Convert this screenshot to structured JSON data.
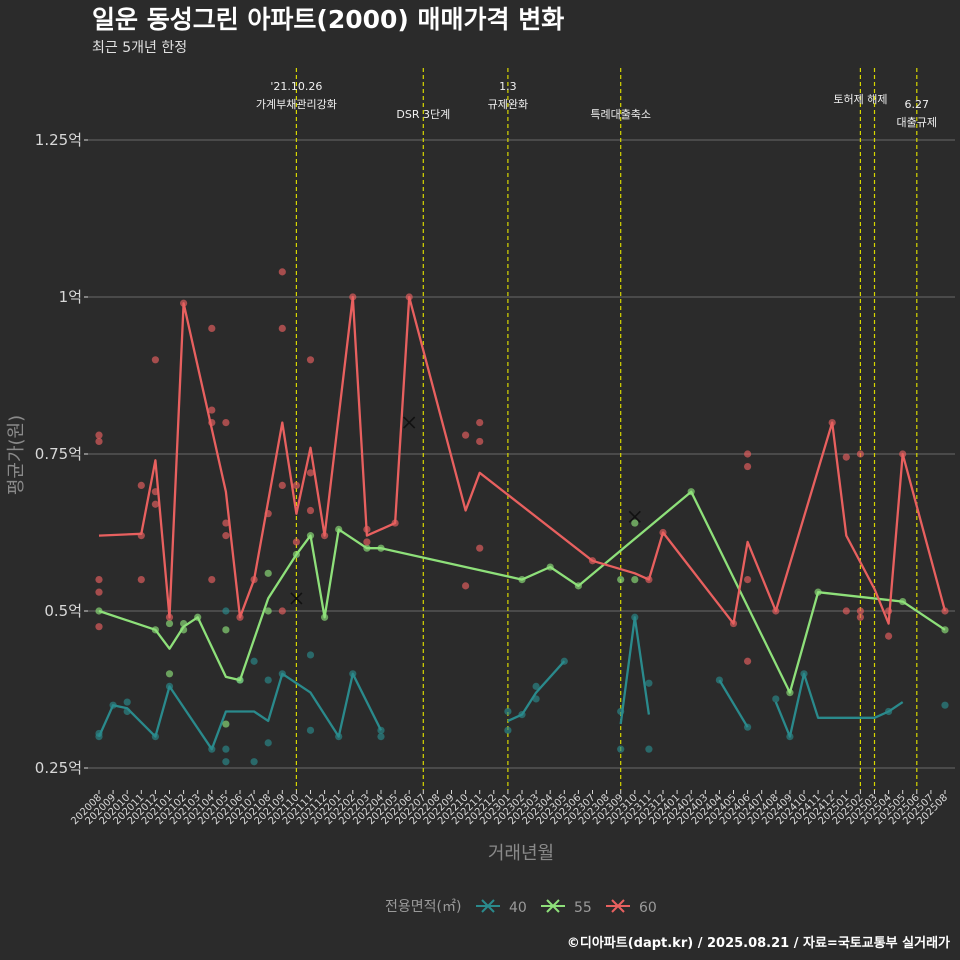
{
  "chart_data": {
    "type": "line",
    "title": "일운 동성그린 아파트(2000) 매매가격 변화",
    "subtitle": "최근 5개년 한정",
    "xlabel": "거래년월",
    "ylabel": "평균가(원)",
    "caption": "©디아파트(dapt.kr) / 2025.08.21 / 자료=국토교통부 실거래가",
    "ylim": [
      0.2,
      1.35
    ],
    "yticks": [
      {
        "value": 0.25,
        "label": "0.25억"
      },
      {
        "value": 0.5,
        "label": "0.5억"
      },
      {
        "value": 0.75,
        "label": "0.75억"
      },
      {
        "value": 1.0,
        "label": "1억"
      },
      {
        "value": 1.25,
        "label": "1.25억"
      }
    ],
    "x_categories": [
      "202008",
      "202009",
      "202010",
      "202011",
      "202012",
      "202101",
      "202102",
      "202103",
      "202104",
      "202105",
      "202106",
      "202107",
      "202108",
      "202109",
      "202110",
      "202111",
      "202112",
      "202201",
      "202202",
      "202203",
      "202204",
      "202205",
      "202206",
      "202207",
      "202208",
      "202209",
      "202210",
      "202211",
      "202212",
      "202301",
      "202302",
      "202303",
      "202304",
      "202305",
      "202306",
      "202307",
      "202308",
      "202309",
      "202310",
      "202311",
      "202312",
      "202401",
      "202402",
      "202403",
      "202404",
      "202405",
      "202406",
      "202407",
      "202408",
      "202409",
      "202410",
      "202411",
      "202412",
      "202501",
      "202502",
      "202503",
      "202504",
      "202505",
      "202506",
      "202507",
      "202508"
    ],
    "events": [
      {
        "month": "202110",
        "lines": [
          "'21.10.26",
          "가계부채관리강화"
        ]
      },
      {
        "month": "202207",
        "lines": [
          "DSR 3단계"
        ]
      },
      {
        "month": "202301",
        "lines": [
          "1.3",
          "규제완화"
        ]
      },
      {
        "month": "202309",
        "lines": [
          "특례대출축소"
        ]
      },
      {
        "month": "202502",
        "lines": [
          "토허제 해제"
        ]
      },
      {
        "month": "202503",
        "lines": [
          ""
        ]
      },
      {
        "month": "202506",
        "lines": [
          "6.27",
          "대출규제"
        ]
      }
    ],
    "legend": {
      "title": "전용면적(㎡)",
      "position": "bottom"
    },
    "series": [
      {
        "name": "40",
        "color": "#2a8a8c",
        "line": [
          {
            "segment": [
              [
                "202008",
                0.3
              ],
              [
                "202009",
                0.35
              ],
              [
                "202010",
                0.345
              ],
              [
                "202012",
                0.3
              ],
              [
                "202101",
                0.38
              ],
              [
                "202104",
                0.28
              ],
              [
                "202105",
                0.34
              ],
              [
                "202107",
                0.34
              ],
              [
                "202108",
                0.325
              ],
              [
                "202109",
                0.4
              ],
              [
                "202111",
                0.37
              ],
              [
                "202201",
                0.3
              ],
              [
                "202202",
                0.4
              ],
              [
                "202204",
                0.31
              ]
            ]
          },
          {
            "segment": [
              [
                "202301",
                0.325
              ],
              [
                "202302",
                0.335
              ],
              [
                "202303",
                0.37
              ],
              [
                "202305",
                0.42
              ]
            ]
          },
          {
            "segment": [
              [
                "202309",
                0.32
              ],
              [
                "202310",
                0.49
              ],
              [
                "202311",
                0.335
              ]
            ]
          },
          {
            "segment": [
              [
                "202404",
                0.39
              ],
              [
                "202406",
                0.315
              ]
            ]
          },
          {
            "segment": [
              [
                "202408",
                0.355
              ],
              [
                "202409",
                0.3
              ],
              [
                "202410",
                0.4
              ],
              [
                "202411",
                0.33
              ],
              [
                "202503",
                0.33
              ],
              [
                "202504",
                0.34
              ],
              [
                "202505",
                0.355
              ]
            ]
          }
        ],
        "points": [
          [
            "202008",
            0.305
          ],
          [
            "202008",
            0.3
          ],
          [
            "202009",
            0.35
          ],
          [
            "202010",
            0.34
          ],
          [
            "202010",
            0.355
          ],
          [
            "202012",
            0.3
          ],
          [
            "202101",
            0.38
          ],
          [
            "202104",
            0.28
          ],
          [
            "202105",
            0.5
          ],
          [
            "202105",
            0.28
          ],
          [
            "202105",
            0.26
          ],
          [
            "202106",
            0.39
          ],
          [
            "202107",
            0.42
          ],
          [
            "202107",
            0.26
          ],
          [
            "202108",
            0.39
          ],
          [
            "202108",
            0.29
          ],
          [
            "202109",
            0.4
          ],
          [
            "202111",
            0.43
          ],
          [
            "202111",
            0.31
          ],
          [
            "202201",
            0.3
          ],
          [
            "202202",
            0.4
          ],
          [
            "202204",
            0.3
          ],
          [
            "202204",
            0.31
          ],
          [
            "202301",
            0.31
          ],
          [
            "202301",
            0.34
          ],
          [
            "202302",
            0.335
          ],
          [
            "202303",
            0.38
          ],
          [
            "202303",
            0.36
          ],
          [
            "202305",
            0.42
          ],
          [
            "202309",
            0.28
          ],
          [
            "202309",
            0.34
          ],
          [
            "202310",
            0.49
          ],
          [
            "202311",
            0.28
          ],
          [
            "202311",
            0.385
          ],
          [
            "202404",
            0.39
          ],
          [
            "202406",
            0.315
          ],
          [
            "202408",
            0.36
          ],
          [
            "202409",
            0.3
          ],
          [
            "202410",
            0.4
          ],
          [
            "202504",
            0.34
          ],
          [
            "202508",
            0.35
          ]
        ],
        "marker": null
      },
      {
        "name": "55",
        "color": "#8ee07a",
        "line": [
          {
            "segment": [
              [
                "202008",
                0.5
              ],
              [
                "202012",
                0.47
              ],
              [
                "202101",
                0.44
              ],
              [
                "202102",
                0.475
              ],
              [
                "202103",
                0.49
              ],
              [
                "202105",
                0.395
              ],
              [
                "202106",
                0.39
              ],
              [
                "202108",
                0.52
              ],
              [
                "202110",
                0.59
              ],
              [
                "202111",
                0.62
              ],
              [
                "202112",
                0.49
              ],
              [
                "202201",
                0.63
              ],
              [
                "202203",
                0.6
              ],
              [
                "202204",
                0.6
              ],
              [
                "202302",
                0.55
              ],
              [
                "202304",
                0.57
              ],
              [
                "202306",
                0.54
              ],
              [
                "202402",
                0.69
              ],
              [
                "202409",
                0.37
              ],
              [
                "202411",
                0.53
              ],
              [
                "202505",
                0.515
              ],
              [
                "202508",
                0.47
              ]
            ]
          }
        ],
        "points": [
          [
            "202008",
            0.5
          ],
          [
            "202012",
            0.47
          ],
          [
            "202101",
            0.48
          ],
          [
            "202101",
            0.4
          ],
          [
            "202102",
            0.48
          ],
          [
            "202102",
            0.47
          ],
          [
            "202103",
            0.49
          ],
          [
            "202105",
            0.47
          ],
          [
            "202105",
            0.32
          ],
          [
            "202106",
            0.39
          ],
          [
            "202108",
            0.5
          ],
          [
            "202108",
            0.56
          ],
          [
            "202110",
            0.59
          ],
          [
            "202111",
            0.62
          ],
          [
            "202112",
            0.49
          ],
          [
            "202201",
            0.63
          ],
          [
            "202203",
            0.6
          ],
          [
            "202204",
            0.6
          ],
          [
            "202302",
            0.55
          ],
          [
            "202304",
            0.57
          ],
          [
            "202306",
            0.54
          ],
          [
            "202309",
            0.55
          ],
          [
            "202310",
            0.55
          ],
          [
            "202310",
            0.64
          ],
          [
            "202402",
            0.69
          ],
          [
            "202409",
            0.37
          ],
          [
            "202411",
            0.53
          ],
          [
            "202505",
            0.515
          ],
          [
            "202508",
            0.47
          ]
        ],
        "marker": [
          "202310",
          0.65
        ],
        "marker2": [
          "202110",
          0.52
        ]
      },
      {
        "name": "60",
        "color": "#e8605f",
        "line": [
          {
            "segment": [
              [
                "202008",
                0.62
              ],
              [
                "202011",
                0.623
              ],
              [
                "202012",
                0.74
              ],
              [
                "202101",
                0.49
              ],
              [
                "202102",
                0.99
              ],
              [
                "202105",
                0.69
              ],
              [
                "202106",
                0.49
              ],
              [
                "202107",
                0.55
              ],
              [
                "202109",
                0.8
              ],
              [
                "202110",
                0.655
              ],
              [
                "202111",
                0.76
              ],
              [
                "202112",
                0.62
              ],
              [
                "202202",
                1.0
              ],
              [
                "202203",
                0.62
              ],
              [
                "202205",
                0.64
              ],
              [
                "202206",
                1.0
              ],
              [
                "202210",
                0.66
              ],
              [
                "202211",
                0.72
              ],
              [
                "202307",
                0.58
              ],
              [
                "202310",
                0.56
              ],
              [
                "202311",
                0.55
              ],
              [
                "202312",
                0.625
              ],
              [
                "202405",
                0.48
              ],
              [
                "202406",
                0.61
              ],
              [
                "202408",
                0.5
              ],
              [
                "202412",
                0.8
              ],
              [
                "202501",
                0.62
              ],
              [
                "202503",
                0.535
              ],
              [
                "202504",
                0.48
              ],
              [
                "202505",
                0.75
              ],
              [
                "202508",
                0.5
              ]
            ]
          }
        ],
        "points": [
          [
            "202008",
            0.78
          ],
          [
            "202008",
            0.77
          ],
          [
            "202008",
            0.55
          ],
          [
            "202008",
            0.53
          ],
          [
            "202008",
            0.475
          ],
          [
            "202011",
            0.7
          ],
          [
            "202011",
            0.62
          ],
          [
            "202011",
            0.55
          ],
          [
            "202012",
            0.9
          ],
          [
            "202012",
            0.69
          ],
          [
            "202012",
            0.67
          ],
          [
            "202101",
            0.49
          ],
          [
            "202102",
            0.99
          ],
          [
            "202104",
            0.95
          ],
          [
            "202104",
            0.82
          ],
          [
            "202104",
            0.8
          ],
          [
            "202104",
            0.55
          ],
          [
            "202105",
            0.8
          ],
          [
            "202105",
            0.64
          ],
          [
            "202105",
            0.62
          ],
          [
            "202106",
            0.49
          ],
          [
            "202107",
            0.55
          ],
          [
            "202108",
            0.655
          ],
          [
            "202109",
            1.04
          ],
          [
            "202109",
            0.95
          ],
          [
            "202109",
            0.7
          ],
          [
            "202109",
            0.5
          ],
          [
            "202110",
            0.7
          ],
          [
            "202110",
            0.61
          ],
          [
            "202111",
            0.9
          ],
          [
            "202111",
            0.72
          ],
          [
            "202111",
            0.66
          ],
          [
            "202112",
            0.62
          ],
          [
            "202202",
            1.0
          ],
          [
            "202203",
            0.63
          ],
          [
            "202203",
            0.61
          ],
          [
            "202205",
            0.64
          ],
          [
            "202206",
            1.0
          ],
          [
            "202210",
            0.78
          ],
          [
            "202210",
            0.54
          ],
          [
            "202211",
            0.8
          ],
          [
            "202211",
            0.77
          ],
          [
            "202211",
            0.6
          ],
          [
            "202307",
            0.58
          ],
          [
            "202311",
            0.55
          ],
          [
            "202312",
            0.625
          ],
          [
            "202405",
            0.48
          ],
          [
            "202406",
            0.75
          ],
          [
            "202406",
            0.73
          ],
          [
            "202406",
            0.55
          ],
          [
            "202406",
            0.42
          ],
          [
            "202408",
            0.5
          ],
          [
            "202412",
            0.8
          ],
          [
            "202501",
            0.745
          ],
          [
            "202501",
            0.5
          ],
          [
            "202502",
            0.75
          ],
          [
            "202502",
            0.5
          ],
          [
            "202502",
            0.49
          ],
          [
            "202504",
            0.5
          ],
          [
            "202504",
            0.46
          ],
          [
            "202505",
            0.75
          ],
          [
            "202508",
            0.5
          ]
        ],
        "marker": [
          "202206",
          0.8
        ]
      }
    ]
  }
}
